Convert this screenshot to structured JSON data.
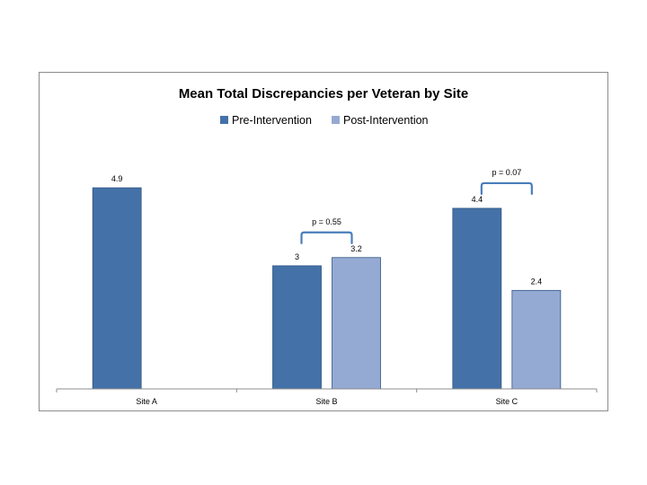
{
  "chart_data": {
    "type": "bar",
    "title": "Mean Total Discrepancies per Veteran by Site",
    "xlabel": "",
    "ylabel": "",
    "categories": [
      "Site A",
      "Site B",
      "Site C"
    ],
    "series": [
      {
        "name": "Pre-Intervention",
        "values": [
          4.9,
          3,
          4.4
        ],
        "labels": [
          "4.9",
          "3",
          "4.4"
        ],
        "color": "#4472a8"
      },
      {
        "name": "Post-Intervention",
        "values": [
          null,
          3.2,
          2.4
        ],
        "labels": [
          "",
          "3.2",
          "2.4"
        ],
        "color": "#95aad3"
      }
    ],
    "ylim": [
      0,
      5.5
    ],
    "grid": false,
    "legend_position": "top-center",
    "annotations": [
      {
        "category": "Site B",
        "text": "p = 0.55"
      },
      {
        "category": "Site C",
        "text": "p = 0.07"
      }
    ],
    "bracket_color": "#4a7ebb",
    "axis_color": "#8c8c8c"
  }
}
